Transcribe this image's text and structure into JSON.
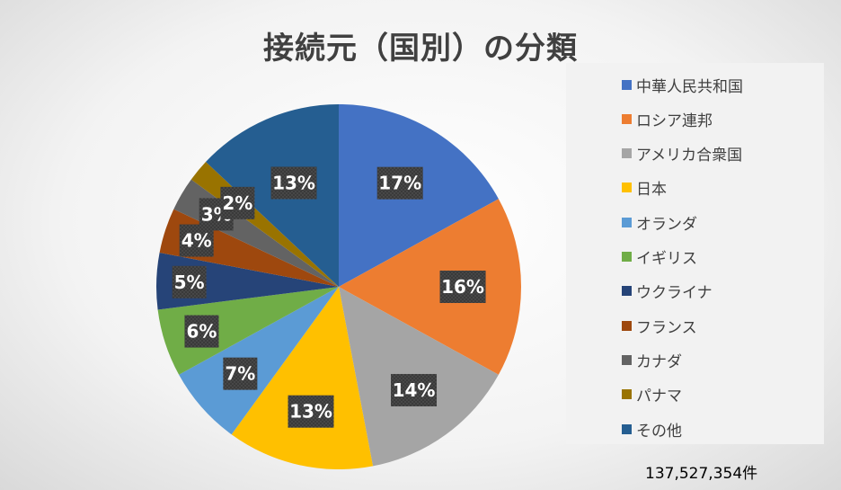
{
  "chart_data": {
    "type": "pie",
    "title": "接続元（国別）の分類",
    "categories": [
      "中華人民共和国",
      "ロシア連邦",
      "アメリカ合衆国",
      "日本",
      "オランダ",
      "イギリス",
      "ウクライナ",
      "フランス",
      "カナダ",
      "パナマ",
      "その他"
    ],
    "values": [
      17,
      16,
      14,
      13,
      7,
      6,
      5,
      4,
      3,
      2,
      13
    ],
    "value_labels": [
      "17%",
      "16%",
      "14%",
      "13%",
      "7%",
      "6%",
      "5%",
      "4%",
      "3%",
      "2%",
      "13%"
    ],
    "colors": [
      "#4472C4",
      "#ED7D31",
      "#A5A5A5",
      "#FFC000",
      "#5B9BD5",
      "#70AD47",
      "#264478",
      "#9E480E",
      "#636363",
      "#997300",
      "#255E91"
    ],
    "legend_position": "right",
    "total_label": "137,527,354件"
  }
}
